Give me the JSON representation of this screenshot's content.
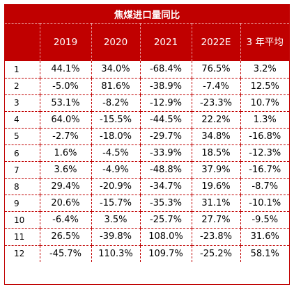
{
  "table": {
    "title": "焦煤进口量同比",
    "headers": [
      "",
      "2019",
      "2020",
      "2021",
      "2022E",
      "3 年平均"
    ],
    "rows": [
      {
        "month": "1",
        "values": [
          "44.1%",
          "34.0%",
          "-68.4%",
          "76.5%",
          "3.2%"
        ]
      },
      {
        "month": "2",
        "values": [
          "-5.0%",
          "81.6%",
          "-38.9%",
          "-7.4%",
          "12.5%"
        ]
      },
      {
        "month": "3",
        "values": [
          "53.1%",
          "-8.2%",
          "-12.9%",
          "-23.3%",
          "10.7%"
        ]
      },
      {
        "month": "4",
        "values": [
          "64.0%",
          "-15.5%",
          "-44.5%",
          "22.2%",
          "1.3%"
        ]
      },
      {
        "month": "5",
        "values": [
          "-2.7%",
          "-18.0%",
          "-29.7%",
          "34.8%",
          "-16.8%"
        ]
      },
      {
        "month": "6",
        "values": [
          "1.6%",
          "-4.5%",
          "-33.9%",
          "18.5%",
          "-12.3%"
        ]
      },
      {
        "month": "7",
        "values": [
          "3.6%",
          "-4.9%",
          "-48.8%",
          "37.9%",
          "-16.7%"
        ]
      },
      {
        "month": "8",
        "values": [
          "29.4%",
          "-20.9%",
          "-34.7%",
          "19.6%",
          "-8.7%"
        ]
      },
      {
        "month": "9",
        "values": [
          "20.6%",
          "-15.7%",
          "-35.3%",
          "31.1%",
          "-10.1%"
        ]
      },
      {
        "month": "10",
        "values": [
          "-6.4%",
          "3.5%",
          "-25.7%",
          "27.7%",
          "-9.5%"
        ]
      },
      {
        "month": "11",
        "values": [
          "26.5%",
          "-39.8%",
          "108.0%",
          "-23.8%",
          "31.6%"
        ]
      },
      {
        "month": "12",
        "values": [
          "-45.7%",
          "110.3%",
          "109.7%",
          "-25.2%",
          "58.1%"
        ]
      }
    ]
  }
}
